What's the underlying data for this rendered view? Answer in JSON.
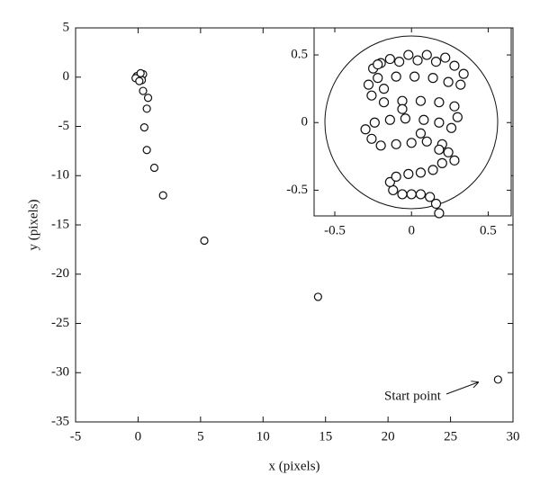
{
  "chart_data": [
    {
      "type": "scatter",
      "xlabel": "x (pixels)",
      "ylabel": "y (pixels)",
      "annotation": "Start point",
      "xlim": [
        -5,
        30
      ],
      "ylim": [
        -35,
        5
      ],
      "xticks": [
        -5,
        0,
        5,
        10,
        15,
        20,
        25,
        30
      ],
      "yticks": [
        -35,
        -30,
        -25,
        -20,
        -15,
        -10,
        -5,
        0,
        5
      ],
      "color": "#111111",
      "x": [
        28.8,
        14.4,
        5.3,
        2.0,
        1.3,
        0.7,
        0.5,
        0.7,
        0.8,
        0.4,
        0.0,
        0.1,
        -0.1,
        0.3,
        0.2,
        0.4,
        -0.2,
        0.3,
        0.1,
        0.2
      ],
      "y": [
        -30.7,
        -22.3,
        -16.6,
        -12.0,
        -9.2,
        -7.4,
        -5.1,
        -3.2,
        -2.1,
        -1.4,
        0.0,
        0.2,
        0.1,
        0.1,
        -0.2,
        0.3,
        -0.1,
        -0.3,
        -0.4,
        0.4
      ]
    },
    {
      "type": "scatter",
      "xlim": [
        -0.635,
        0.65
      ],
      "ylim": [
        -0.69,
        0.7
      ],
      "xticks": [
        -0.5,
        0,
        0.5
      ],
      "yticks": [
        -0.5,
        0,
        0.5
      ],
      "color": "#111111",
      "x": [
        0.18,
        0.16,
        0.12,
        0.06,
        0.0,
        -0.06,
        -0.12,
        -0.14,
        -0.1,
        -0.02,
        0.06,
        0.14,
        0.2,
        0.24,
        0.2,
        0.1,
        0.0,
        -0.1,
        -0.2,
        -0.26,
        -0.3,
        -0.24,
        -0.14,
        -0.04,
        0.08,
        0.18,
        0.26,
        0.3,
        0.28,
        0.18,
        0.06,
        -0.06,
        -0.18,
        -0.26,
        -0.28,
        -0.22,
        -0.1,
        0.02,
        0.14,
        0.24,
        0.32,
        0.34,
        0.28,
        0.16,
        0.04,
        -0.08,
        -0.2,
        -0.25,
        -0.18,
        -0.06,
        0.06,
        0.18,
        0.28,
        0.22,
        0.1,
        -0.02,
        -0.14,
        -0.22
      ],
      "y": [
        -0.67,
        -0.6,
        -0.55,
        -0.53,
        -0.53,
        -0.53,
        -0.5,
        -0.44,
        -0.4,
        -0.38,
        -0.37,
        -0.35,
        -0.3,
        -0.22,
        -0.16,
        -0.14,
        -0.15,
        -0.16,
        -0.17,
        -0.12,
        -0.05,
        0.0,
        0.02,
        0.03,
        0.02,
        0.0,
        -0.04,
        0.04,
        0.12,
        0.15,
        0.16,
        0.16,
        0.15,
        0.2,
        0.28,
        0.33,
        0.34,
        0.34,
        0.33,
        0.3,
        0.28,
        0.36,
        0.42,
        0.45,
        0.46,
        0.45,
        0.44,
        0.4,
        0.25,
        0.1,
        -0.08,
        -0.2,
        -0.28,
        0.48,
        0.5,
        0.5,
        0.47,
        0.43
      ]
    }
  ]
}
